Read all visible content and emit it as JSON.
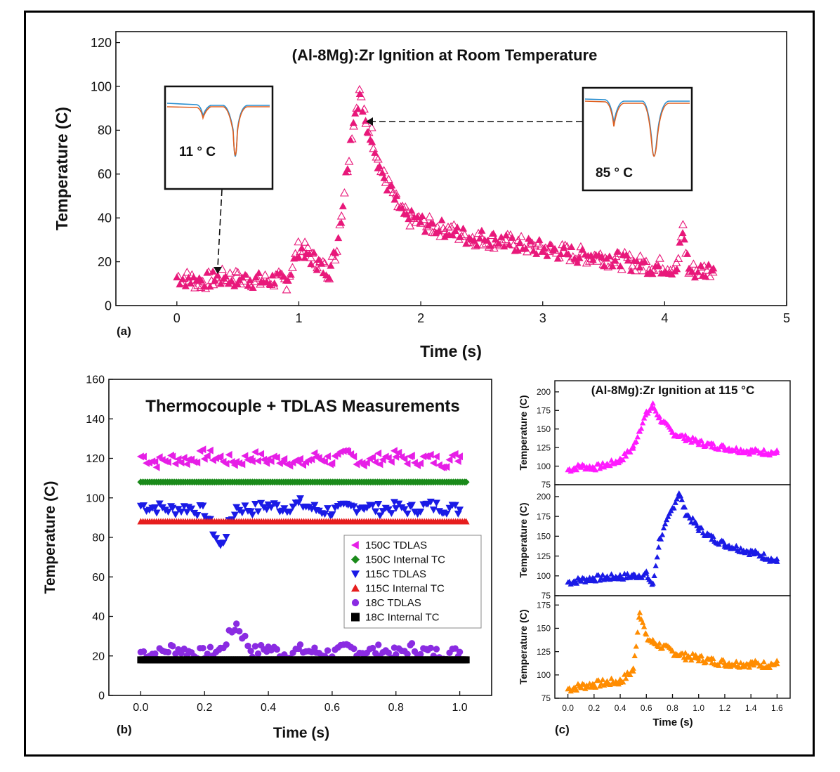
{
  "chart_data": [
    {
      "panel_label": "(a)",
      "type": "scatter",
      "title": "(Al-8Mg):Zr Ignition at Room Temperature",
      "xlabel": "Time (s)",
      "ylabel": "Temperature (C)",
      "xlim": [
        -0.5,
        5
      ],
      "ylim": [
        0,
        125
      ],
      "xticks": [
        "0",
        "1",
        "2",
        "3",
        "4",
        "5"
      ],
      "yticks": [
        "0",
        "20",
        "40",
        "60",
        "80",
        "100",
        "120"
      ],
      "marker_color": "#e8187a",
      "series": [
        {
          "x": [
            0,
            0.1,
            0.2,
            0.3,
            0.4,
            0.5,
            0.6,
            0.7,
            0.8,
            0.9,
            1.0,
            1.05,
            1.1,
            1.15,
            1.2,
            1.25,
            1.3,
            1.35,
            1.4,
            1.45,
            1.5,
            1.55,
            1.6,
            1.65,
            1.7,
            1.75,
            1.8,
            1.85,
            1.9,
            2.0,
            2.1,
            2.2,
            2.3,
            2.4,
            2.5,
            2.6,
            2.7,
            2.8,
            2.9,
            3.0,
            3.1,
            3.2,
            3.3,
            3.4,
            3.5,
            3.6,
            3.7,
            3.8,
            3.9,
            4.0,
            4.1,
            4.15,
            4.2,
            4.3,
            4.4
          ],
          "y": [
            13,
            12,
            11,
            12,
            13,
            12,
            12,
            11,
            12,
            11,
            26,
            25,
            22,
            20,
            17,
            16,
            24,
            42,
            65,
            85,
            97,
            82,
            78,
            66,
            58,
            53,
            47,
            42,
            40,
            38,
            36,
            35,
            33,
            31,
            31,
            30,
            29,
            28,
            27,
            26,
            25,
            24,
            23,
            23,
            22,
            21,
            20,
            19,
            18,
            18,
            17,
            35,
            16,
            16,
            17
          ]
        }
      ],
      "insets": [
        {
          "label": "11 ° C",
          "points_to_x": 0.35,
          "points_to_y": 18,
          "measured_color": "#e06020",
          "model_color": "#2a8fd0"
        },
        {
          "label": "85 ° C",
          "points_to_x": 1.6,
          "points_to_y": 86,
          "measured_color": "#e06020",
          "model_color": "#2a8fd0"
        }
      ]
    },
    {
      "panel_label": "(b)",
      "type": "scatter",
      "title": "Thermocouple + TDLAS Measurements",
      "xlabel": "Time (s)",
      "ylabel": "Temperature (C)",
      "xlim": [
        -0.1,
        1.1
      ],
      "ylim": [
        0,
        160
      ],
      "xticks": [
        "0.0",
        "0.2",
        "0.4",
        "0.6",
        "0.8",
        "1.0"
      ],
      "yticks": [
        "0",
        "20",
        "40",
        "60",
        "80",
        "100",
        "120",
        "140",
        "160"
      ],
      "legend_position": "lower-right",
      "series": [
        {
          "name": "150C TDLAS",
          "marker": "triangle-left",
          "color": "#e61ee6",
          "x": [
            0,
            0.05,
            0.1,
            0.15,
            0.2,
            0.25,
            0.3,
            0.35,
            0.4,
            0.45,
            0.5,
            0.55,
            0.6,
            0.65,
            0.7,
            0.75,
            0.8,
            0.85,
            0.9,
            0.95,
            1.0
          ],
          "y": [
            121,
            118,
            120,
            119,
            122,
            120,
            118,
            121,
            119,
            120,
            117,
            121,
            119,
            122,
            118,
            120,
            121,
            119,
            120,
            118,
            121
          ]
        },
        {
          "name": "150C Internal TC",
          "marker": "diamond",
          "color": "#1a8a1a",
          "x": [
            0,
            1.02
          ],
          "y": [
            108,
            108
          ]
        },
        {
          "name": "115C TDLAS",
          "marker": "triangle-down",
          "color": "#1a1ae6",
          "x": [
            0,
            0.05,
            0.1,
            0.15,
            0.2,
            0.25,
            0.3,
            0.35,
            0.4,
            0.45,
            0.5,
            0.55,
            0.6,
            0.65,
            0.7,
            0.75,
            0.8,
            0.85,
            0.9,
            0.95,
            1.0
          ],
          "y": [
            96,
            95,
            94,
            95,
            93,
            75,
            95,
            94,
            96,
            95,
            97,
            94,
            93,
            95,
            96,
            94,
            95,
            94,
            96,
            95,
            94
          ]
        },
        {
          "name": "115C Internal TC",
          "marker": "triangle-up",
          "color": "#e61e1e",
          "x": [
            0,
            1.02
          ],
          "y": [
            88,
            88
          ]
        },
        {
          "name": "18C TDLAS",
          "marker": "circle",
          "color": "#8a2be2",
          "x": [
            0,
            0.05,
            0.1,
            0.15,
            0.2,
            0.25,
            0.3,
            0.35,
            0.4,
            0.45,
            0.5,
            0.55,
            0.6,
            0.65,
            0.7,
            0.75,
            0.8,
            0.85,
            0.9,
            0.95,
            1.0
          ],
          "y": [
            22,
            21,
            24,
            22,
            21,
            23,
            36,
            22,
            24,
            21,
            23,
            22,
            21,
            24,
            22,
            23,
            21,
            24,
            22,
            21,
            22
          ]
        },
        {
          "name": "18C Internal TC",
          "marker": "square",
          "color": "#000000",
          "x": [
            0,
            1.02
          ],
          "y": [
            18,
            18
          ]
        }
      ]
    },
    {
      "panel_label": "(c)",
      "type": "scatter",
      "title": "(Al-8Mg):Zr Ignition at 115 °C",
      "xlabel": "Time (s)",
      "ylabel": "Temperature (C)",
      "xlim": [
        -0.1,
        1.7
      ],
      "xticks": [
        "0.0",
        "0.2",
        "0.4",
        "0.6",
        "0.8",
        "1.0",
        "1.2",
        "1.4",
        "1.6"
      ],
      "subplots": [
        {
          "ylim": [
            75,
            215
          ],
          "yticks": [
            "75",
            "100",
            "125",
            "150",
            "175",
            "200"
          ],
          "color": "#ff1aff",
          "x": [
            0,
            0.1,
            0.2,
            0.3,
            0.4,
            0.5,
            0.55,
            0.6,
            0.65,
            0.7,
            0.8,
            0.9,
            1.0,
            1.1,
            1.2,
            1.3,
            1.4,
            1.5,
            1.6
          ],
          "y": [
            95,
            100,
            98,
            102,
            108,
            125,
            150,
            170,
            182,
            165,
            145,
            138,
            132,
            128,
            125,
            122,
            120,
            119,
            118
          ]
        },
        {
          "ylim": [
            75,
            215
          ],
          "yticks": [
            "75",
            "100",
            "125",
            "150",
            "175",
            "200"
          ],
          "color": "#1a1ae6",
          "x": [
            0,
            0.1,
            0.2,
            0.3,
            0.4,
            0.5,
            0.6,
            0.65,
            0.7,
            0.8,
            0.85,
            0.9,
            1.0,
            1.1,
            1.2,
            1.3,
            1.4,
            1.5,
            1.6
          ],
          "y": [
            92,
            95,
            97,
            98,
            99,
            100,
            102,
            88,
            145,
            185,
            205,
            180,
            160,
            148,
            140,
            135,
            130,
            125,
            118
          ]
        },
        {
          "ylim": [
            75,
            185
          ],
          "yticks": [
            "75",
            "100",
            "125",
            "150",
            "175"
          ],
          "color": "#ff8c00",
          "x": [
            0,
            0.1,
            0.2,
            0.3,
            0.4,
            0.5,
            0.55,
            0.6,
            0.65,
            0.7,
            0.8,
            0.9,
            1.0,
            1.1,
            1.2,
            1.3,
            1.4,
            1.5,
            1.6
          ],
          "y": [
            85,
            88,
            90,
            92,
            93,
            105,
            170,
            140,
            135,
            132,
            125,
            120,
            118,
            115,
            113,
            112,
            112,
            111,
            112
          ]
        }
      ]
    }
  ]
}
